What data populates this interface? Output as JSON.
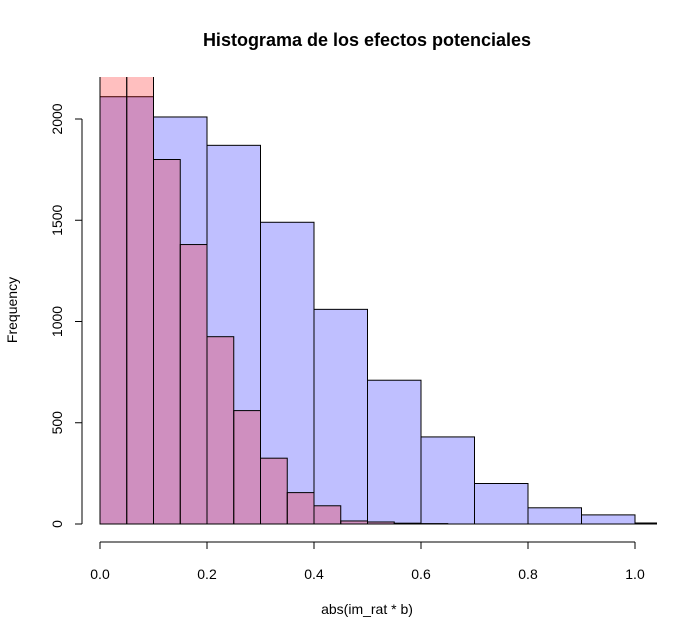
{
  "chart_data": {
    "type": "histogram",
    "title": "Histograma de los efectos potenciales",
    "xlabel": "abs(im_rat * b)",
    "ylabel": "Frequency",
    "xlim": [
      0,
      1.05
    ],
    "ylim": [
      0,
      2050
    ],
    "x_ticks": [
      {
        "value": 0,
        "label": "0.0"
      },
      {
        "value": 0.2,
        "label": "0.2"
      },
      {
        "value": 0.4,
        "label": "0.4"
      },
      {
        "value": 0.6,
        "label": "0.6"
      },
      {
        "value": 0.8,
        "label": "0.8"
      },
      {
        "value": 1.0,
        "label": "1.0"
      }
    ],
    "y_ticks": [
      {
        "value": 0,
        "label": "0"
      },
      {
        "value": 500,
        "label": "500"
      },
      {
        "value": 1000,
        "label": "1000"
      },
      {
        "value": 1500,
        "label": "1500"
      },
      {
        "value": 2000,
        "label": "2000"
      }
    ],
    "grid": false,
    "series": [
      {
        "color": "#bfbfff",
        "opacity": 1,
        "bin_edges": [
          0,
          0.1,
          0.2,
          0.3,
          0.4,
          0.5,
          0.6,
          0.7,
          0.8,
          0.9,
          1.0,
          1.1
        ],
        "counts": [
          2110,
          2010,
          1870,
          1490,
          1060,
          710,
          430,
          200,
          80,
          45,
          5
        ]
      },
      {
        "color": "#ff0000",
        "opacity": 0.25,
        "bin_edges": [
          0,
          0.05,
          0.1,
          0.15,
          0.2,
          0.25,
          0.3,
          0.35,
          0.4,
          0.45,
          0.5,
          0.55,
          0.6,
          0.65
        ],
        "counts": [
          2220,
          2220,
          1800,
          1380,
          925,
          560,
          325,
          155,
          90,
          15,
          10,
          4,
          2
        ]
      }
    ]
  }
}
